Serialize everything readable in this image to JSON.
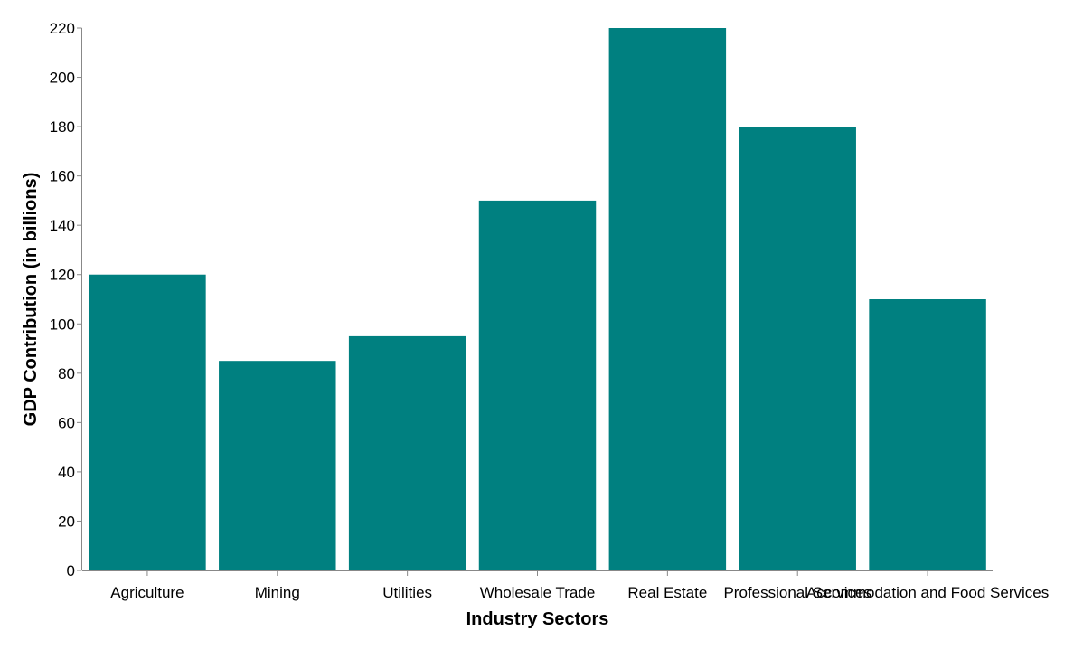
{
  "chart_data": {
    "type": "bar",
    "title": "",
    "xlabel": "Industry Sectors",
    "ylabel": "GDP Contribution (in billions)",
    "categories": [
      "Agriculture",
      "Mining",
      "Utilities",
      "Wholesale Trade",
      "Real Estate",
      "Professional Services",
      "Accommodation and Food Services"
    ],
    "values": [
      120,
      85,
      95,
      150,
      220,
      180,
      110
    ],
    "ylim": [
      0,
      220
    ],
    "yticks": [
      0,
      20,
      40,
      60,
      80,
      100,
      120,
      140,
      160,
      180,
      200,
      220
    ],
    "grid": false,
    "legend": "none",
    "bar_color": "#008080",
    "axis_color": "#888888"
  }
}
